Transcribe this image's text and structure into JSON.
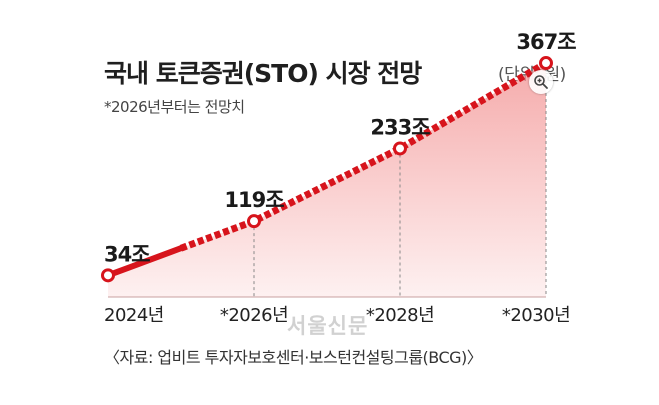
{
  "title": "국내 토큰증권(STO) 시장 전망",
  "unit_note": "(단위: 원)",
  "footnote": "*2026년부터는 전망치",
  "source": "〈자료: 업비트 투자자보호센터·보스턴컨설팅그룹(BCG)〉",
  "watermark": "서울신문",
  "icons": {
    "zoom": "zoom-in-icon"
  },
  "colors": {
    "line": "#d7141c",
    "fill_top": "#f28f8f",
    "fill_bottom": "#fdecec"
  },
  "chart_data": {
    "type": "line",
    "categories": [
      "2024년",
      "*2026년",
      "*2028년",
      "*2030년"
    ],
    "x": [
      2024,
      2026,
      2028,
      2030
    ],
    "values": [
      34,
      119,
      233,
      367
    ],
    "data_labels": [
      "34조",
      "119조",
      "233조",
      "367조"
    ],
    "actual_until": 2025,
    "projection_from": 2026,
    "ylim": [
      0,
      400
    ],
    "grid": false,
    "legend": "none",
    "xlabel": "",
    "ylabel": ""
  }
}
